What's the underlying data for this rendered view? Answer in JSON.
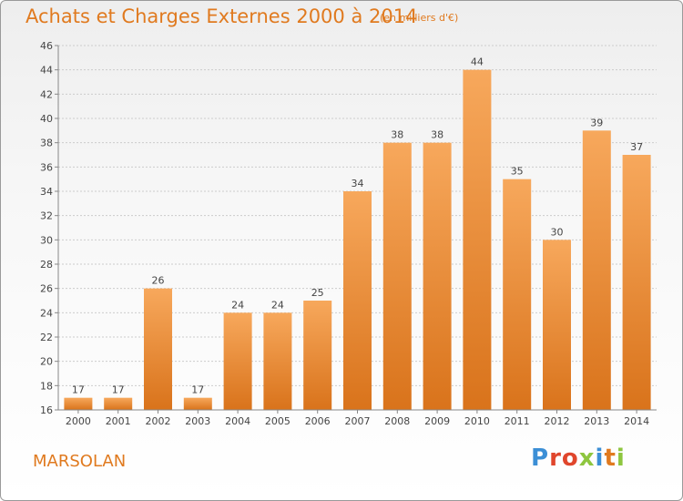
{
  "header": {
    "title": "Achats et Charges Externes 2000 à 2014",
    "subtitle": "(en milliers d'€)"
  },
  "footer": {
    "region": "MARSOLAN",
    "logo_text": "Proxiti"
  },
  "colors": {
    "accent": "#e07a1f",
    "bar_top": "#f7a85c",
    "bar_bottom": "#d9731b",
    "logo_letters": [
      "#3c8fd6",
      "#e0462c",
      "#e0462c",
      "#8ec63f",
      "#3c8fd6",
      "#e07a1f",
      "#8ec63f"
    ]
  },
  "chart_data": {
    "type": "bar",
    "categories": [
      "2000",
      "2001",
      "2002",
      "2003",
      "2004",
      "2005",
      "2006",
      "2007",
      "2008",
      "2009",
      "2010",
      "2011",
      "2012",
      "2013",
      "2014"
    ],
    "values": [
      17,
      17,
      26,
      17,
      24,
      24,
      25,
      34,
      38,
      38,
      44,
      35,
      30,
      39,
      37
    ],
    "yticks": [
      16,
      18,
      20,
      22,
      24,
      26,
      28,
      30,
      32,
      34,
      36,
      38,
      40,
      42,
      44,
      46
    ],
    "ylim": [
      16,
      46
    ],
    "grid": "horizontal-dashed",
    "legend": "none"
  }
}
